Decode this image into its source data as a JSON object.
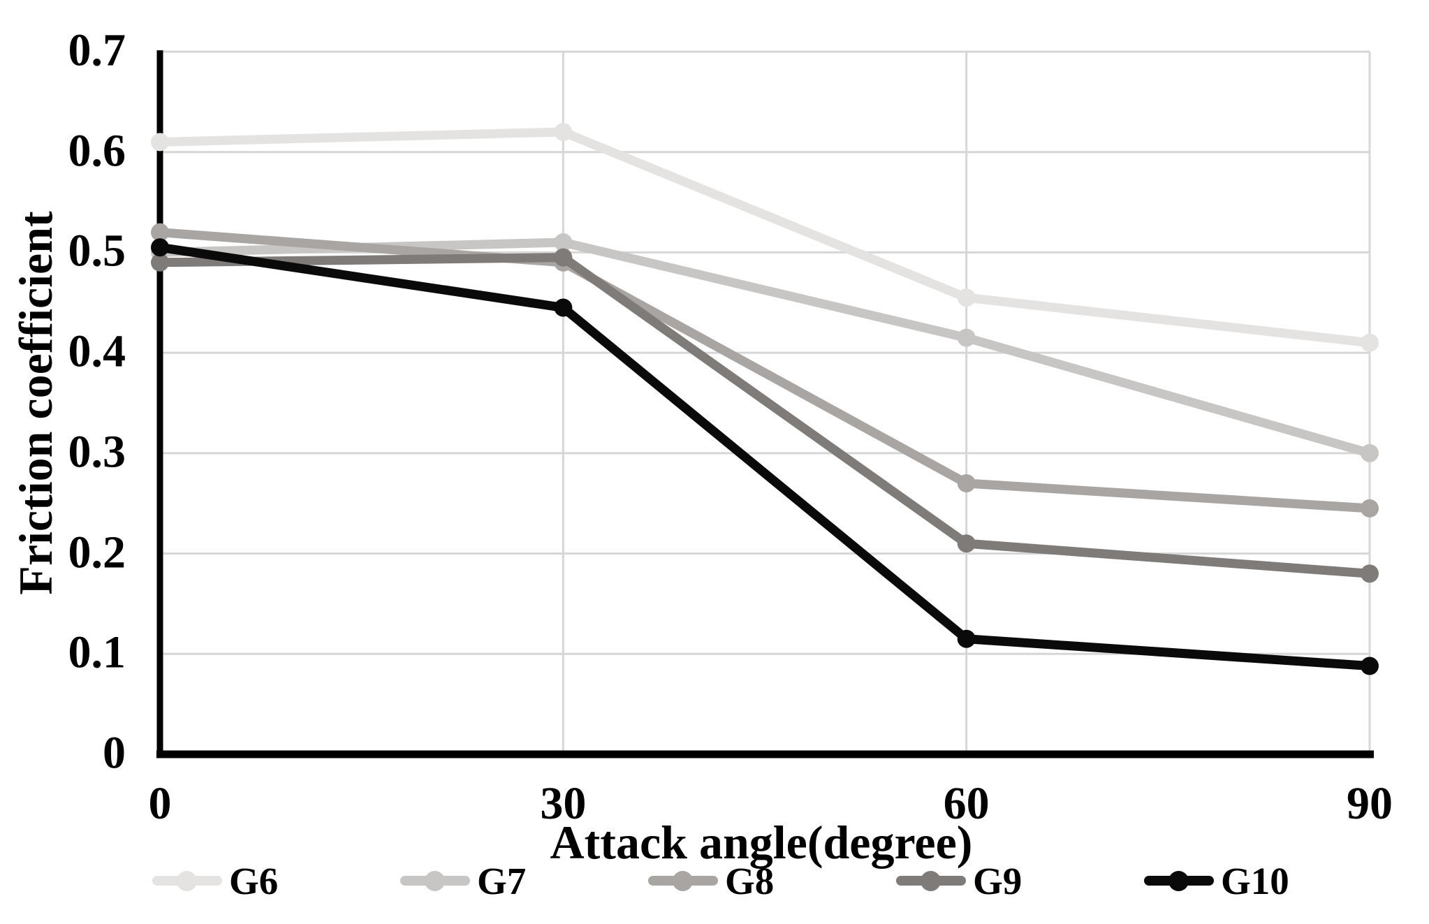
{
  "chart_data": {
    "type": "line",
    "title": "",
    "xlabel": "Attack angle(degree)",
    "ylabel": "Friction coefficient",
    "categories": [
      0,
      30,
      60,
      90
    ],
    "x_tick_labels": [
      "0",
      "30",
      "60",
      "90"
    ],
    "y_ticks": [
      0,
      0.1,
      0.2,
      0.3,
      0.4,
      0.5,
      0.6,
      0.7
    ],
    "y_tick_labels": [
      "0",
      "0.1",
      "0.2",
      "0.3",
      "0.4",
      "0.5",
      "0.6",
      "0.7"
    ],
    "ylim": [
      0,
      0.7
    ],
    "grid": true,
    "marker": "circle",
    "legend_position": "bottom",
    "series": [
      {
        "name": "G6",
        "color": "#e4e3e2",
        "values": [
          0.61,
          0.62,
          0.455,
          0.41
        ]
      },
      {
        "name": "G7",
        "color": "#c8c6c5",
        "values": [
          0.5,
          0.51,
          0.415,
          0.3
        ]
      },
      {
        "name": "G8",
        "color": "#a8a5a2",
        "values": [
          0.52,
          0.49,
          0.27,
          0.245
        ]
      },
      {
        "name": "G9",
        "color": "#7e7b78",
        "values": [
          0.49,
          0.495,
          0.21,
          0.18
        ]
      },
      {
        "name": "G10",
        "color": "#0a0a0a",
        "values": [
          0.505,
          0.445,
          0.115,
          0.088
        ]
      }
    ]
  },
  "colors": {
    "background": "#ffffff",
    "gridline": "#d6d6d6",
    "axis": "#000000",
    "text": "#000000"
  }
}
